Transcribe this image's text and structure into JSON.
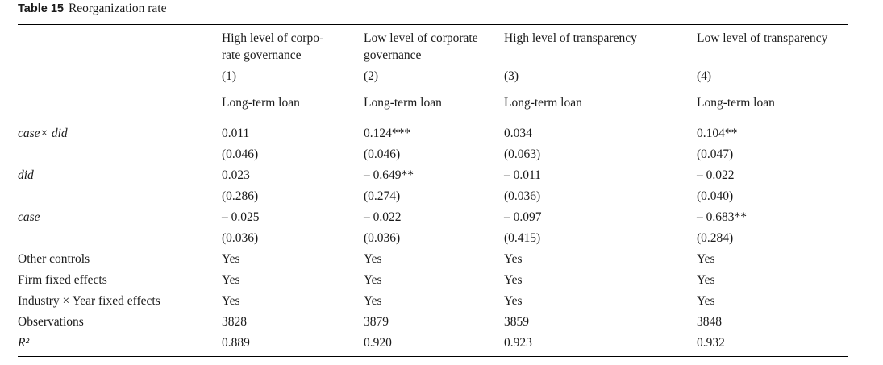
{
  "caption": {
    "number": "Table 15",
    "title": "Reorganization rate"
  },
  "columns": [
    {
      "header_line1": "High level of corpo-",
      "header_line2": "rate governance",
      "index": "(1)",
      "dep_var": "Long-term loan"
    },
    {
      "header_line1": "Low level of corporate",
      "header_line2": "governance",
      "index": "(2)",
      "dep_var": "Long-term loan"
    },
    {
      "header_line1": "High level of transparency",
      "header_line2": "",
      "index": "(3)",
      "dep_var": "Long-term loan"
    },
    {
      "header_line1": "Low level of transparency",
      "header_line2": "",
      "index": "(4)",
      "dep_var": "Long-term loan"
    }
  ],
  "rows": [
    {
      "label": "case× did",
      "italic": true,
      "values": [
        "0.011",
        "0.124***",
        "0.034",
        "0.104**"
      ]
    },
    {
      "label": "",
      "italic": false,
      "values": [
        "(0.046)",
        "(0.046)",
        "(0.063)",
        "(0.047)"
      ]
    },
    {
      "label": "did",
      "italic": true,
      "values": [
        "0.023",
        "– 0.649**",
        "– 0.011",
        "– 0.022"
      ]
    },
    {
      "label": "",
      "italic": false,
      "values": [
        "(0.286)",
        "(0.274)",
        "(0.036)",
        "(0.040)"
      ]
    },
    {
      "label": "case",
      "italic": true,
      "values": [
        "– 0.025",
        "– 0.022",
        "– 0.097",
        "– 0.683**"
      ]
    },
    {
      "label": "",
      "italic": false,
      "values": [
        "(0.036)",
        "(0.036)",
        "(0.415)",
        "(0.284)"
      ]
    },
    {
      "label": "Other controls",
      "italic": false,
      "values": [
        "Yes",
        "Yes",
        "Yes",
        "Yes"
      ]
    },
    {
      "label": "Firm fixed effects",
      "italic": false,
      "values": [
        "Yes",
        "Yes",
        "Yes",
        "Yes"
      ]
    },
    {
      "label": "Industry × Year fixed effects",
      "italic": false,
      "values": [
        "Yes",
        "Yes",
        "Yes",
        "Yes"
      ]
    },
    {
      "label": "Observations",
      "italic": false,
      "values": [
        "3828",
        "3879",
        "3859",
        "3848"
      ]
    },
    {
      "label": "R²",
      "italic": true,
      "values": [
        "0.889",
        "0.920",
        "0.923",
        "0.932"
      ]
    }
  ]
}
